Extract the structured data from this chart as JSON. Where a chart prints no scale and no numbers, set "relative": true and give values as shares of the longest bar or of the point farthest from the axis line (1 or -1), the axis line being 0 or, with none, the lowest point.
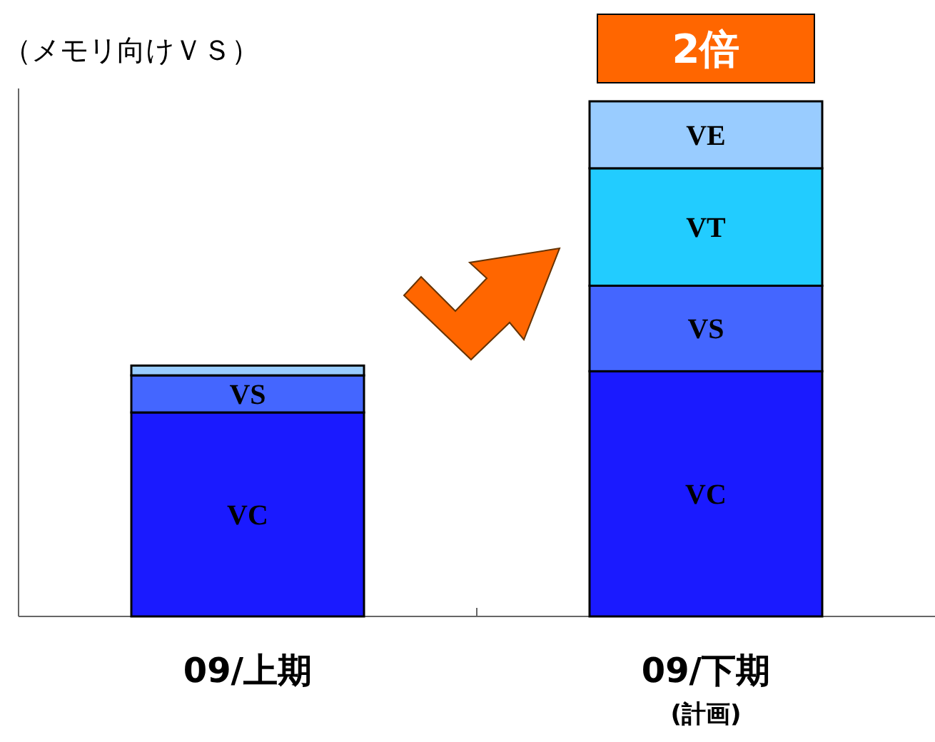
{
  "chart_data": {
    "type": "bar",
    "stacked": true,
    "relative": true,
    "subtitle": "（メモリ向けＶＳ）",
    "categories": [
      "09/上期",
      "09/下期\n(計画)"
    ],
    "series": [
      {
        "name": "VC",
        "color": "#1a1aff",
        "values": [
          0.396,
          0.476
        ]
      },
      {
        "name": "VS",
        "color": "#4466ff",
        "values": [
          0.072,
          0.166
        ]
      },
      {
        "name": "VT",
        "color": "#22ccff",
        "values": [
          null,
          0.228
        ]
      },
      {
        "name": "VE",
        "color": "#99ccff",
        "values": [
          0.019,
          0.13
        ]
      }
    ],
    "annotations": [
      "2倍"
    ]
  }
}
